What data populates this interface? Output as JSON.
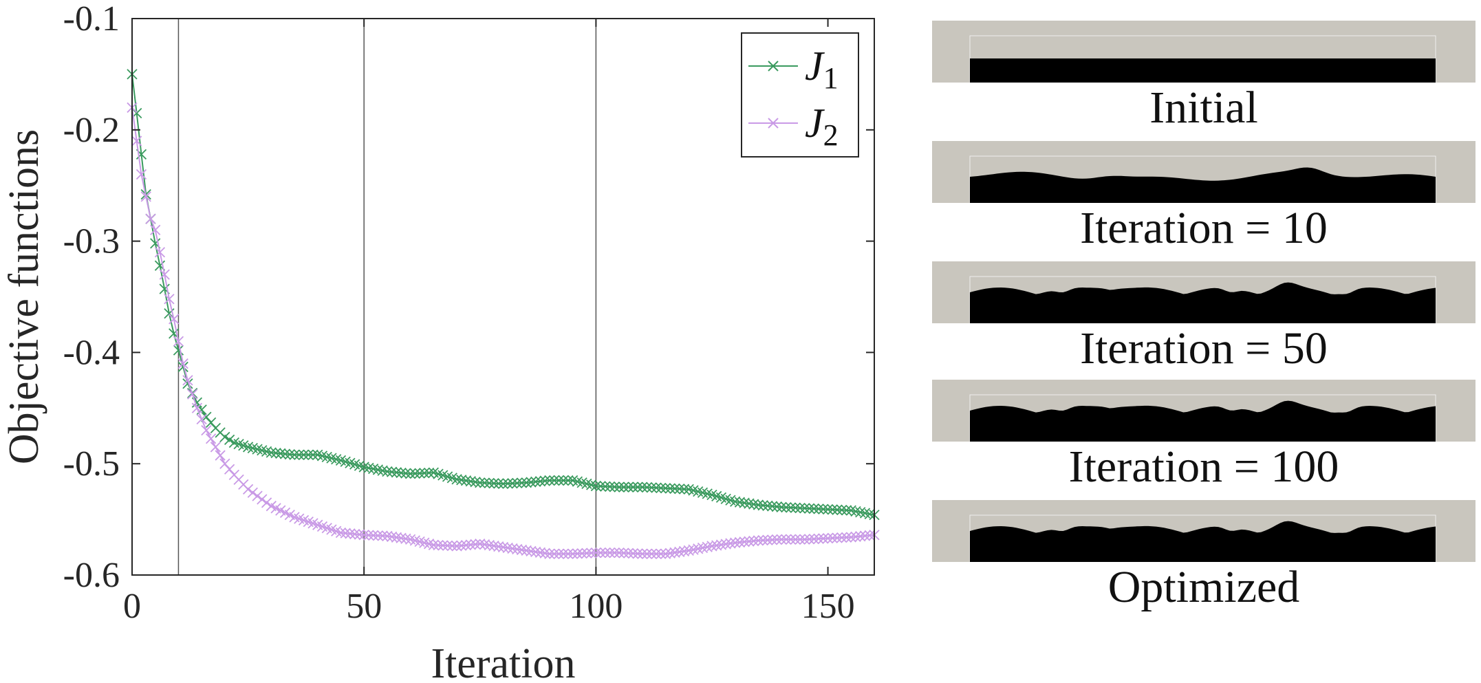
{
  "chart_data": {
    "type": "line",
    "xlabel": "Iteration",
    "ylabel": "Objective functions",
    "xlim": [
      0,
      160
    ],
    "ylim": [
      -0.6,
      -0.1
    ],
    "xticks": [
      0,
      50,
      100,
      150
    ],
    "yticks": [
      -0.1,
      -0.2,
      -0.3,
      -0.4,
      -0.5,
      -0.6
    ],
    "xtick_labels": [
      "0",
      "50",
      "100",
      "150"
    ],
    "ytick_labels": [
      "-0.1",
      "-0.2",
      "-0.3",
      "-0.4",
      "-0.5",
      "-0.6"
    ],
    "vlines": [
      10,
      50,
      100
    ],
    "legend_placement": "top-right",
    "marker": "x",
    "series": [
      {
        "name": "J1",
        "legend_main": "J",
        "legend_sub": "1",
        "color": "#3a9a5e",
        "points": [
          [
            0,
            -0.15
          ],
          [
            1,
            -0.185
          ],
          [
            2,
            -0.222
          ],
          [
            3,
            -0.258
          ],
          [
            4,
            -0.28
          ],
          [
            5,
            -0.302
          ],
          [
            6,
            -0.322
          ],
          [
            7,
            -0.343
          ],
          [
            8,
            -0.365
          ],
          [
            9,
            -0.383
          ],
          [
            10,
            -0.398
          ],
          [
            11,
            -0.413
          ],
          [
            12,
            -0.428
          ],
          [
            14,
            -0.445
          ],
          [
            16,
            -0.458
          ],
          [
            18,
            -0.468
          ],
          [
            20,
            -0.476
          ],
          [
            22,
            -0.481
          ],
          [
            25,
            -0.485
          ],
          [
            30,
            -0.49
          ],
          [
            35,
            -0.492
          ],
          [
            40,
            -0.492
          ],
          [
            45,
            -0.497
          ],
          [
            50,
            -0.503
          ],
          [
            55,
            -0.507
          ],
          [
            60,
            -0.509
          ],
          [
            65,
            -0.508
          ],
          [
            70,
            -0.514
          ],
          [
            75,
            -0.517
          ],
          [
            80,
            -0.518
          ],
          [
            85,
            -0.517
          ],
          [
            90,
            -0.515
          ],
          [
            95,
            -0.515
          ],
          [
            100,
            -0.52
          ],
          [
            105,
            -0.521
          ],
          [
            110,
            -0.521
          ],
          [
            115,
            -0.522
          ],
          [
            120,
            -0.523
          ],
          [
            125,
            -0.528
          ],
          [
            130,
            -0.534
          ],
          [
            135,
            -0.537
          ],
          [
            140,
            -0.539
          ],
          [
            145,
            -0.54
          ],
          [
            150,
            -0.541
          ],
          [
            155,
            -0.542
          ],
          [
            160,
            -0.546
          ]
        ]
      },
      {
        "name": "J2",
        "legend_main": "J",
        "legend_sub": "2",
        "color": "#c99ae6",
        "points": [
          [
            0,
            -0.18
          ],
          [
            1,
            -0.21
          ],
          [
            2,
            -0.24
          ],
          [
            3,
            -0.26
          ],
          [
            4,
            -0.28
          ],
          [
            5,
            -0.29
          ],
          [
            6,
            -0.31
          ],
          [
            7,
            -0.33
          ],
          [
            8,
            -0.352
          ],
          [
            9,
            -0.37
          ],
          [
            10,
            -0.39
          ],
          [
            11,
            -0.41
          ],
          [
            12,
            -0.425
          ],
          [
            14,
            -0.45
          ],
          [
            16,
            -0.47
          ],
          [
            18,
            -0.485
          ],
          [
            20,
            -0.5
          ],
          [
            22,
            -0.51
          ],
          [
            25,
            -0.523
          ],
          [
            30,
            -0.538
          ],
          [
            35,
            -0.548
          ],
          [
            40,
            -0.555
          ],
          [
            45,
            -0.562
          ],
          [
            50,
            -0.564
          ],
          [
            55,
            -0.565
          ],
          [
            60,
            -0.568
          ],
          [
            65,
            -0.573
          ],
          [
            70,
            -0.574
          ],
          [
            75,
            -0.572
          ],
          [
            80,
            -0.575
          ],
          [
            85,
            -0.578
          ],
          [
            90,
            -0.581
          ],
          [
            95,
            -0.581
          ],
          [
            100,
            -0.58
          ],
          [
            105,
            -0.58
          ],
          [
            110,
            -0.581
          ],
          [
            115,
            -0.581
          ],
          [
            120,
            -0.578
          ],
          [
            125,
            -0.574
          ],
          [
            130,
            -0.571
          ],
          [
            135,
            -0.569
          ],
          [
            140,
            -0.568
          ],
          [
            145,
            -0.568
          ],
          [
            150,
            -0.567
          ],
          [
            155,
            -0.566
          ],
          [
            160,
            -0.564
          ]
        ]
      }
    ]
  },
  "snapshots": [
    {
      "caption": "Initial",
      "profile": "flat"
    },
    {
      "caption": "Iteration = 10",
      "profile": "gentle"
    },
    {
      "caption": "Iteration = 50",
      "profile": "rough"
    },
    {
      "caption": "Iteration = 100",
      "profile": "rough"
    },
    {
      "caption": "Optimized",
      "profile": "rough"
    }
  ],
  "colors": {
    "snapshot_background": "#c9c6be",
    "snapshot_fill": "#000000",
    "gridline": "#555555"
  }
}
